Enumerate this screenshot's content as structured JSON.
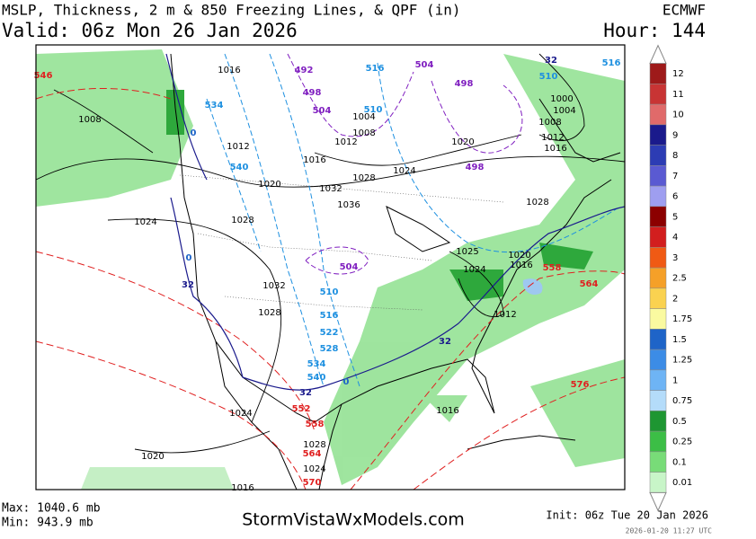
{
  "header": {
    "title": "MSLP, Thickness, 2 m & 850 Freezing Lines, & QPF (in)",
    "model": "ECMWF",
    "valid": "Valid: 06z Mon 26 Jan 2026",
    "hour": "Hour: 144"
  },
  "legend": {
    "labels": [
      "12",
      "11",
      "10",
      "9",
      "8",
      "7",
      "6",
      "5",
      "4",
      "3",
      "2.5",
      "2",
      "1.75",
      "1.5",
      "1.25",
      "1",
      "0.75",
      "0.5",
      "0.25",
      "0.1",
      "0.01"
    ],
    "colors": [
      "#9e1a1a",
      "#c83434",
      "#e06a6a",
      "#1a1a8c",
      "#2c3cb4",
      "#5a5ad2",
      "#9e9ef0",
      "#8c0000",
      "#d21e1e",
      "#f05a14",
      "#f5a028",
      "#fad250",
      "#fafaa0",
      "#1e64c8",
      "#3c8ce6",
      "#6eb4f5",
      "#b4dcfa",
      "#1e9632",
      "#3cbe46",
      "#78dc78",
      "#c8f5c8"
    ]
  },
  "map": {
    "isobar_labels": [
      "1016",
      "1008",
      "1012",
      "1016",
      "1020",
      "1028",
      "1032",
      "1036",
      "1024",
      "1020",
      "1004",
      "1008",
      "1012",
      "1024",
      "1028",
      "1032",
      "1028",
      "1025",
      "1024",
      "1020",
      "1016",
      "1012",
      "1016",
      "1024",
      "1020",
      "1024",
      "1028",
      "1016",
      "1028",
      "1016",
      "1012",
      "1000",
      "1004",
      "1008"
    ],
    "thickness_labels": [
      {
        "text": "546",
        "color": "#e02020"
      },
      {
        "text": "492",
        "color": "#8020c0"
      },
      {
        "text": "498",
        "color": "#8020c0"
      },
      {
        "text": "504",
        "color": "#8020c0"
      },
      {
        "text": "504",
        "color": "#8020c0"
      },
      {
        "text": "498",
        "color": "#8020c0"
      },
      {
        "text": "498",
        "color": "#8020c0"
      },
      {
        "text": "504",
        "color": "#8020c0"
      },
      {
        "text": "516",
        "color": "#1e90e0"
      },
      {
        "text": "510",
        "color": "#1e90e0"
      },
      {
        "text": "534",
        "color": "#1e90e0"
      },
      {
        "text": "540",
        "color": "#1e90e0"
      },
      {
        "text": "510",
        "color": "#1e90e0"
      },
      {
        "text": "516",
        "color": "#1e90e0"
      },
      {
        "text": "522",
        "color": "#1e90e0"
      },
      {
        "text": "528",
        "color": "#1e90e0"
      },
      {
        "text": "534",
        "color": "#1e90e0"
      },
      {
        "text": "540",
        "color": "#1e90e0"
      },
      {
        "text": "32",
        "color": "#1a1a8c"
      },
      {
        "text": "32",
        "color": "#1a1a8c"
      },
      {
        "text": "32",
        "color": "#1a1a8c"
      },
      {
        "text": "0",
        "color": "#1e64c8"
      },
      {
        "text": "0",
        "color": "#1e64c8"
      },
      {
        "text": "0",
        "color": "#1e64c8"
      },
      {
        "text": "552",
        "color": "#e02020"
      },
      {
        "text": "558",
        "color": "#e02020"
      },
      {
        "text": "564",
        "color": "#e02020"
      },
      {
        "text": "570",
        "color": "#e02020"
      },
      {
        "text": "558",
        "color": "#e02020"
      },
      {
        "text": "564",
        "color": "#e02020"
      },
      {
        "text": "576",
        "color": "#e02020"
      },
      {
        "text": "510",
        "color": "#1e90e0"
      },
      {
        "text": "516",
        "color": "#1e90e0"
      },
      {
        "text": "32",
        "color": "#1a1a8c"
      }
    ]
  },
  "footer": {
    "max": "Max: 1040.6 mb",
    "min": "Min: 943.9 mb",
    "site": "StormVistaWxModels.com",
    "init": "Init: 06z Tue 20 Jan 2026",
    "stamp": "2026-01-20 11:27 UTC"
  }
}
